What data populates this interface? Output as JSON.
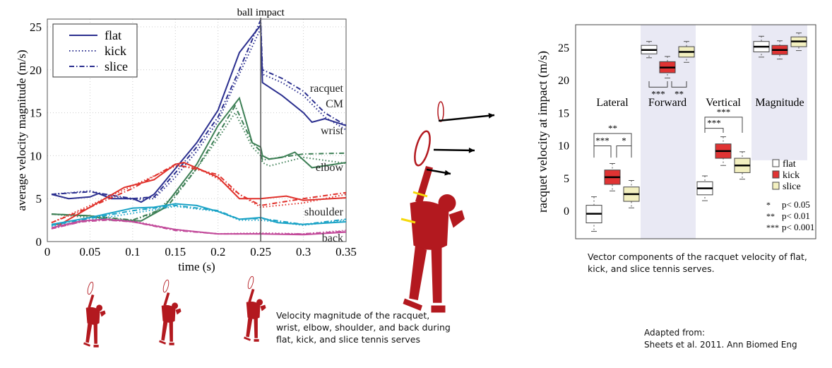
{
  "chart_data": [
    {
      "type": "line",
      "xlabel": "time (s)",
      "ylabel": "average velocity magnitude (m/s)",
      "xlim": [
        0,
        0.35
      ],
      "ylim": [
        0,
        26
      ],
      "xticks": [
        "0",
        "0.05",
        "0.1",
        "0.15",
        "0.2",
        "0.25",
        "0.3",
        "0.35"
      ],
      "yticks": [
        "0",
        "5",
        "10",
        "15",
        "20",
        "25"
      ],
      "grid": true,
      "legend": {
        "position": "top-left",
        "entries": [
          "flat",
          "kick",
          "slice"
        ]
      },
      "annotation": {
        "label": "ball impact",
        "x": 0.25
      },
      "groups": [
        {
          "label": "racquet CM",
          "label_lines": [
            "racquet",
            "CM"
          ],
          "color": "#2b2f8f",
          "flat": [
            [
              0.005,
              5.5
            ],
            [
              0.025,
              5.0
            ],
            [
              0.05,
              5.2
            ],
            [
              0.06,
              5.6
            ],
            [
              0.075,
              5.0
            ],
            [
              0.1,
              5.0
            ],
            [
              0.11,
              4.6
            ],
            [
              0.125,
              5.5
            ],
            [
              0.15,
              8.5
            ],
            [
              0.175,
              11.5
            ],
            [
              0.2,
              15.3
            ],
            [
              0.225,
              22
            ],
            [
              0.25,
              25.2
            ],
            [
              0.252,
              18.5
            ],
            [
              0.275,
              17
            ],
            [
              0.3,
              15
            ],
            [
              0.31,
              13.9
            ],
            [
              0.325,
              14.3
            ],
            [
              0.35,
              13.5
            ]
          ],
          "kick": [
            [
              0.005,
              5.5
            ],
            [
              0.05,
              5.9
            ],
            [
              0.075,
              5.3
            ],
            [
              0.1,
              4.9
            ],
            [
              0.125,
              5.0
            ],
            [
              0.15,
              7.5
            ],
            [
              0.175,
              10.5
            ],
            [
              0.2,
              14
            ],
            [
              0.225,
              19.5
            ],
            [
              0.25,
              24.8
            ],
            [
              0.252,
              19.5
            ],
            [
              0.275,
              18.5
            ],
            [
              0.3,
              17
            ],
            [
              0.325,
              14.5
            ],
            [
              0.35,
              13
            ]
          ],
          "slice": [
            [
              0.005,
              5.5
            ],
            [
              0.05,
              5.8
            ],
            [
              0.1,
              5.0
            ],
            [
              0.125,
              5.2
            ],
            [
              0.15,
              8.0
            ],
            [
              0.175,
              11
            ],
            [
              0.2,
              14.5
            ],
            [
              0.225,
              20
            ],
            [
              0.25,
              25.8
            ],
            [
              0.252,
              20
            ],
            [
              0.275,
              19
            ],
            [
              0.3,
              17.5
            ],
            [
              0.325,
              15
            ],
            [
              0.35,
              13.5
            ]
          ]
        },
        {
          "label": "wrist",
          "label_lines": [
            "wrist"
          ],
          "color": "#3d7f55",
          "flat": [
            [
              0.005,
              3.2
            ],
            [
              0.05,
              3.0
            ],
            [
              0.075,
              2.5
            ],
            [
              0.11,
              2.4
            ],
            [
              0.135,
              3.8
            ],
            [
              0.175,
              9
            ],
            [
              0.2,
              13.5
            ],
            [
              0.225,
              16.7
            ],
            [
              0.24,
              11.5
            ],
            [
              0.25,
              11
            ],
            [
              0.252,
              10
            ],
            [
              0.26,
              9.6
            ],
            [
              0.275,
              9.8
            ],
            [
              0.29,
              10.4
            ],
            [
              0.31,
              8.6
            ],
            [
              0.35,
              9.2
            ]
          ],
          "kick": [
            [
              0.005,
              3.2
            ],
            [
              0.05,
              2.8
            ],
            [
              0.1,
              2.5
            ],
            [
              0.125,
              3.3
            ],
            [
              0.15,
              5.5
            ],
            [
              0.175,
              8.5
            ],
            [
              0.2,
              12
            ],
            [
              0.22,
              15
            ],
            [
              0.24,
              11
            ],
            [
              0.25,
              10
            ],
            [
              0.252,
              9.2
            ],
            [
              0.26,
              8.8
            ],
            [
              0.3,
              9.8
            ],
            [
              0.35,
              9.1
            ]
          ],
          "slice": [
            [
              0.005,
              3.2
            ],
            [
              0.05,
              3.0
            ],
            [
              0.1,
              2.5
            ],
            [
              0.14,
              4
            ],
            [
              0.175,
              8.5
            ],
            [
              0.2,
              12.5
            ],
            [
              0.22,
              15.8
            ],
            [
              0.24,
              11.5
            ],
            [
              0.25,
              10.5
            ],
            [
              0.252,
              9.5
            ],
            [
              0.3,
              10.2
            ],
            [
              0.35,
              10.3
            ]
          ]
        },
        {
          "label": "elbow",
          "label_lines": [
            "elbow"
          ],
          "color": "#e0312b",
          "flat": [
            [
              0.005,
              2
            ],
            [
              0.015,
              2
            ],
            [
              0.05,
              4
            ],
            [
              0.09,
              6.3
            ],
            [
              0.125,
              7.2
            ],
            [
              0.15,
              9.0
            ],
            [
              0.16,
              9.2
            ],
            [
              0.2,
              7.5
            ],
            [
              0.225,
              5
            ],
            [
              0.25,
              5
            ],
            [
              0.28,
              5.3
            ],
            [
              0.3,
              4.8
            ],
            [
              0.35,
              5.1
            ]
          ],
          "kick": [
            [
              0.005,
              2.2
            ],
            [
              0.05,
              4.2
            ],
            [
              0.1,
              6.5
            ],
            [
              0.15,
              8.8
            ],
            [
              0.175,
              8.6
            ],
            [
              0.2,
              7.3
            ],
            [
              0.225,
              5.5
            ],
            [
              0.25,
              4
            ],
            [
              0.3,
              4.5
            ],
            [
              0.35,
              5.5
            ]
          ],
          "slice": [
            [
              0.005,
              2.2
            ],
            [
              0.05,
              4.0
            ],
            [
              0.1,
              6.2
            ],
            [
              0.15,
              9
            ],
            [
              0.2,
              7.8
            ],
            [
              0.225,
              5.5
            ],
            [
              0.25,
              4.2
            ],
            [
              0.3,
              5.0
            ],
            [
              0.35,
              5.7
            ]
          ]
        },
        {
          "label": "shoulder",
          "label_lines": [
            "shoulder"
          ],
          "color": "#1ba3c6",
          "flat": [
            [
              0.005,
              2.0
            ],
            [
              0.05,
              2.8
            ],
            [
              0.1,
              3.9
            ],
            [
              0.125,
              4.0
            ],
            [
              0.15,
              4.4
            ],
            [
              0.175,
              4.2
            ],
            [
              0.2,
              3.5
            ],
            [
              0.225,
              2.6
            ],
            [
              0.25,
              2.8
            ],
            [
              0.27,
              2.2
            ],
            [
              0.3,
              2.0
            ],
            [
              0.35,
              2.3
            ]
          ],
          "kick": [
            [
              0.005,
              1.8
            ],
            [
              0.05,
              2.5
            ],
            [
              0.1,
              3.3
            ],
            [
              0.15,
              4.1
            ],
            [
              0.2,
              3.5
            ],
            [
              0.225,
              2.5
            ],
            [
              0.25,
              2.5
            ],
            [
              0.3,
              1.9
            ],
            [
              0.35,
              2.5
            ]
          ],
          "slice": [
            [
              0.005,
              1.9
            ],
            [
              0.05,
              2.7
            ],
            [
              0.1,
              3.6
            ],
            [
              0.15,
              4.2
            ],
            [
              0.2,
              3.6
            ],
            [
              0.225,
              2.6
            ],
            [
              0.25,
              2.7
            ],
            [
              0.3,
              2.0
            ],
            [
              0.35,
              2.6
            ]
          ]
        },
        {
          "label": "back",
          "label_lines": [
            "back"
          ],
          "color": "#c24a9a",
          "flat": [
            [
              0.005,
              1.6
            ],
            [
              0.04,
              2.4
            ],
            [
              0.07,
              2.6
            ],
            [
              0.1,
              2.3
            ],
            [
              0.15,
              1.4
            ],
            [
              0.2,
              0.9
            ],
            [
              0.25,
              0.9
            ],
            [
              0.3,
              0.8
            ],
            [
              0.35,
              1.1
            ]
          ],
          "kick": [
            [
              0.005,
              1.5
            ],
            [
              0.04,
              2.3
            ],
            [
              0.07,
              2.6
            ],
            [
              0.1,
              2.4
            ],
            [
              0.15,
              1.4
            ],
            [
              0.2,
              0.9
            ],
            [
              0.25,
              1.0
            ],
            [
              0.3,
              0.9
            ],
            [
              0.35,
              1.3
            ]
          ],
          "slice": [
            [
              0.005,
              1.5
            ],
            [
              0.04,
              2.3
            ],
            [
              0.07,
              2.5
            ],
            [
              0.1,
              2.3
            ],
            [
              0.15,
              1.3
            ],
            [
              0.2,
              0.9
            ],
            [
              0.25,
              0.9
            ],
            [
              0.3,
              0.9
            ],
            [
              0.35,
              1.2
            ]
          ]
        }
      ]
    },
    {
      "type": "box",
      "ylabel": "racquet velocity at impact (m/s)",
      "ylim": [
        -4,
        28.5
      ],
      "yticks": [
        "0",
        "5",
        "10",
        "15",
        "20",
        "25"
      ],
      "categories": [
        "Lateral",
        "Forward",
        "Vertical",
        "Magnitude"
      ],
      "series_colors": {
        "flat": "#ffffff",
        "kick": "#e03333",
        "slice": "#f3f0c0"
      },
      "legend": {
        "position": "bottom-right",
        "entries": [
          "flat",
          "kick",
          "slice"
        ],
        "significance": [
          [
            "*",
            "p< 0.05"
          ],
          [
            "**",
            "p< 0.01"
          ],
          [
            "***",
            "p< 0.001"
          ]
        ]
      },
      "boxes": {
        "Lateral": {
          "flat": [
            -3.2,
            -1.9,
            -0.5,
            0.8,
            2.1
          ],
          "kick": [
            3.0,
            4.0,
            5.1,
            6.2,
            7.2
          ],
          "slice": [
            0.4,
            1.4,
            2.5,
            3.6,
            4.6
          ]
        },
        "Forward": {
          "flat": [
            23.4,
            24.0,
            24.6,
            25.3,
            25.9
          ],
          "kick": [
            20.3,
            21.1,
            21.9,
            22.8,
            23.6
          ],
          "slice": [
            22.7,
            23.5,
            24.3,
            25.1,
            25.9
          ]
        },
        "Vertical": {
          "flat": [
            1.5,
            2.4,
            3.4,
            4.4,
            5.3
          ],
          "kick": [
            6.9,
            8.0,
            9.1,
            10.2,
            11.3
          ],
          "slice": [
            4.8,
            5.8,
            6.9,
            8.0,
            9.0
          ]
        },
        "Magnitude": {
          "flat": [
            23.5,
            24.3,
            25.1,
            25.9,
            26.7
          ],
          "kick": [
            23.2,
            23.9,
            24.6,
            25.3,
            26.0
          ],
          "slice": [
            24.5,
            25.1,
            25.9,
            26.6,
            27.2
          ]
        }
      },
      "significance_brackets": [
        {
          "category": "Lateral",
          "from": "flat",
          "to": "kick",
          "label": "***"
        },
        {
          "category": "Lateral",
          "from": "kick",
          "to": "slice",
          "label": "*"
        },
        {
          "category": "Lateral",
          "from": "flat",
          "to": "slice",
          "label": "**"
        },
        {
          "category": "Forward",
          "from": "flat",
          "to": "kick",
          "label": "***"
        },
        {
          "category": "Forward",
          "from": "kick",
          "to": "slice",
          "label": "**"
        },
        {
          "category": "Vertical",
          "from": "flat",
          "to": "kick",
          "label": "***"
        },
        {
          "category": "Vertical",
          "from": "flat",
          "to": "slice",
          "label": "***"
        }
      ]
    }
  ],
  "captions": {
    "left": [
      "Velocity magnitude of the racquet,",
      "wrist, elbow, shoulder, and back during",
      "flat, kick, and slice tennis serves"
    ],
    "right": [
      "Vector components of the racquet velocity of flat,",
      "kick, and slice tennis serves."
    ],
    "source": [
      "Adapted from:",
      "Sheets et al. 2011. Ann Biomed Eng"
    ]
  },
  "figure_colors": {
    "body": "#b3191f",
    "arrow": "#000000",
    "highlight": "#f5d90a"
  }
}
